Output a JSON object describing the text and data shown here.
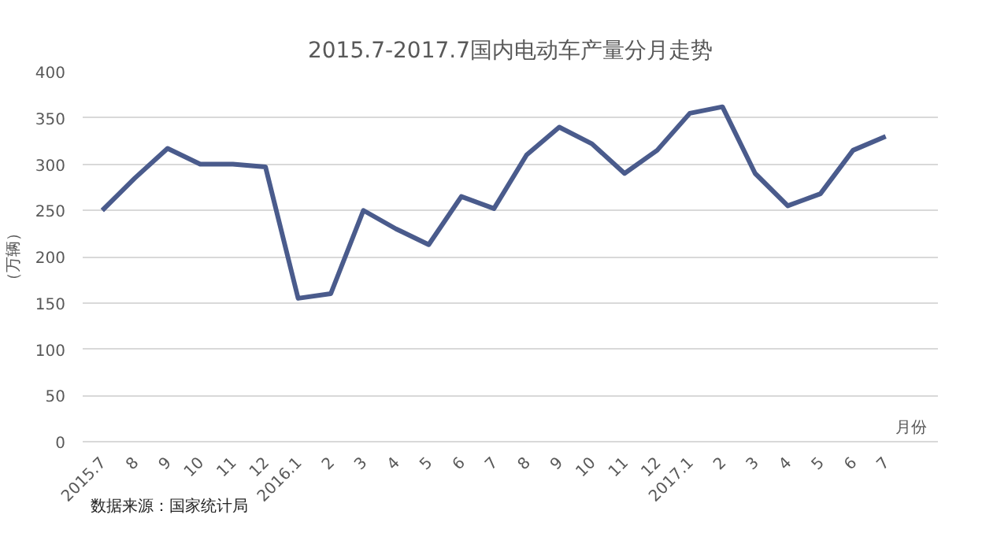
{
  "chart_data": {
    "type": "line",
    "title": "2015.7-2017.7国内电动车产量分月走势",
    "ylabel": "（万辆）",
    "xlabel": "月份",
    "categories": [
      "2015.7",
      "8",
      "9",
      "10",
      "11",
      "12",
      "2016.1",
      "2",
      "3",
      "4",
      "5",
      "6",
      "7",
      "8",
      "9",
      "10",
      "11",
      "12",
      "2017.1",
      "2",
      "3",
      "4",
      "5",
      "6",
      "7"
    ],
    "series": [
      {
        "color": "#4a5b8c",
        "values": [
          250,
          285,
          317,
          300,
          300,
          297,
          155,
          160,
          250,
          230,
          213,
          265,
          252,
          310,
          340,
          322,
          290,
          315,
          355,
          362,
          290,
          255,
          268,
          315,
          330
        ]
      }
    ],
    "ylim": [
      0,
      400
    ],
    "yticks": [
      0,
      50,
      100,
      150,
      200,
      250,
      300,
      350,
      400
    ],
    "grid": "y",
    "marker": "none",
    "line_style": "solid",
    "annotations": [
      "数据来源：国家统计局"
    ]
  }
}
